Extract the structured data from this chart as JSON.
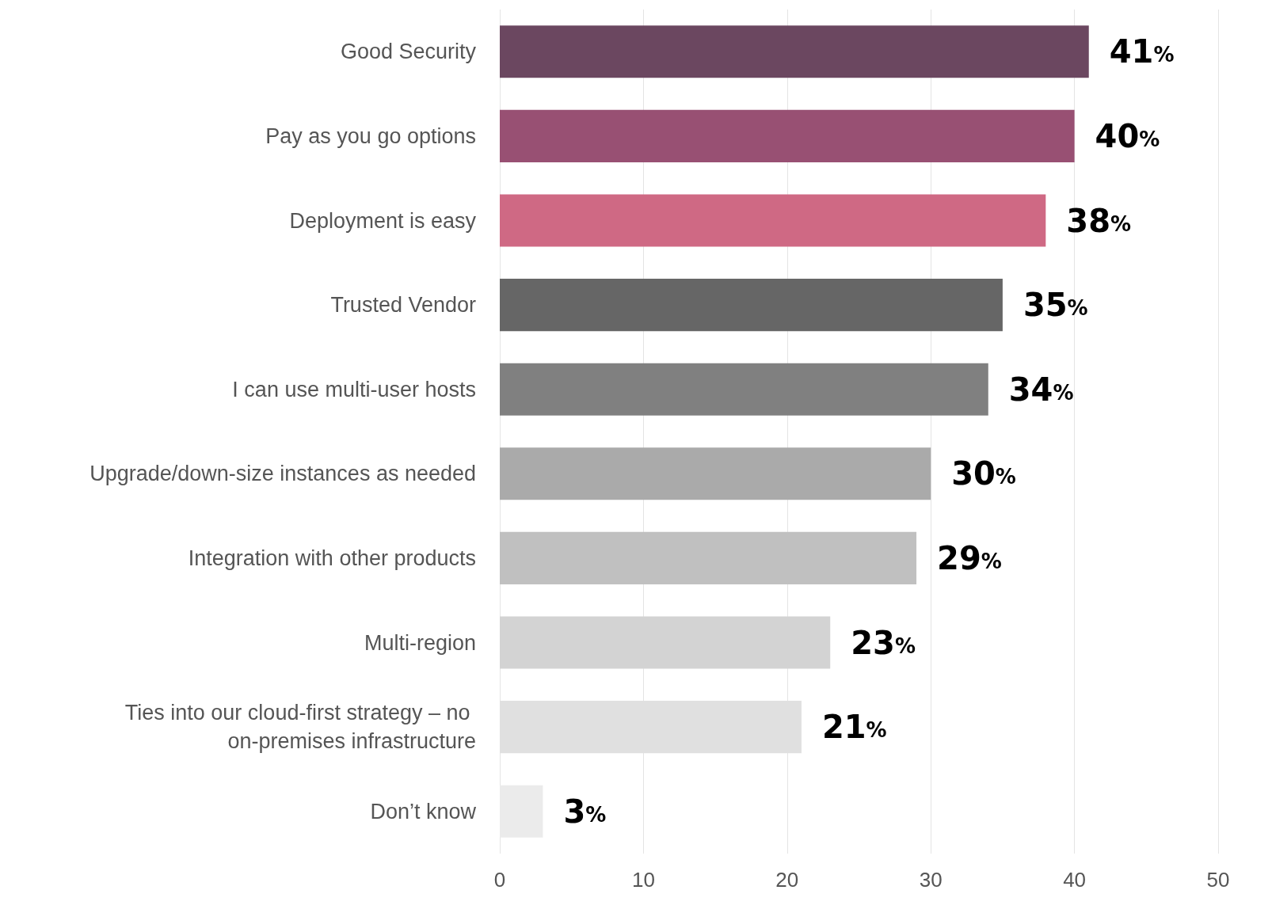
{
  "chart_data": {
    "type": "bar",
    "orientation": "horizontal",
    "categories": [
      "Good Security",
      "Pay as you go options",
      "Deployment is easy",
      "Trusted Vendor",
      "I can use multi-user hosts",
      "Upgrade/down-size instances as needed",
      "Integration with other products",
      "Multi-region",
      "Ties into our cloud-first strategy – no on-premises infrastructure",
      "Don’t know"
    ],
    "values": [
      41,
      40,
      38,
      35,
      34,
      30,
      29,
      23,
      21,
      3
    ],
    "colors": [
      "#6b4760",
      "#985073",
      "#cf6984",
      "#666666",
      "#808080",
      "#aaaaaa",
      "#c0c0c0",
      "#d3d3d3",
      "#e0e0e0",
      "#ebebeb"
    ],
    "value_labels": [
      "41%",
      "40%",
      "38%",
      "35%",
      "34%",
      "30%",
      "29%",
      "23%",
      "21%",
      "3%"
    ],
    "xlim": [
      0,
      50
    ],
    "xticks": [
      0,
      10,
      20,
      30,
      40,
      50
    ],
    "grid": "x"
  }
}
